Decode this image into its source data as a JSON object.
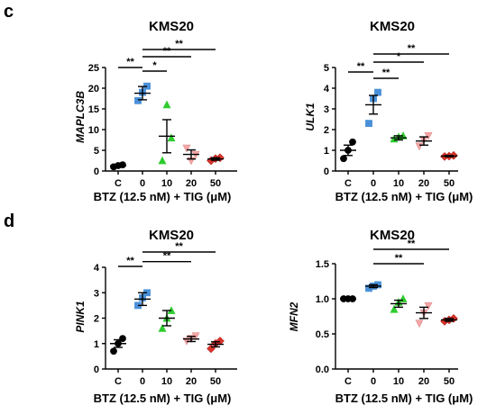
{
  "panel_letters": [
    "c",
    "d"
  ],
  "chart_data": [
    {
      "type": "scatter",
      "panel": "c",
      "title": "KMS20",
      "xlabel": "BTZ (12.5 nM) + TIG (μM)",
      "ylabel": "MAPLC3B",
      "categories": [
        "C",
        "0",
        "10",
        "20",
        "50"
      ],
      "ylim": [
        0,
        25
      ],
      "yticks": [
        "0",
        "5",
        "10",
        "15",
        "20",
        "25"
      ],
      "colors": [
        "#000000",
        "#4a90d9",
        "#2ecc2e",
        "#f4a6a6",
        "#d9342b"
      ],
      "shapes": [
        "circle",
        "square",
        "triangle",
        "triangle-down",
        "diamond"
      ],
      "points": [
        [
          1.0,
          1.3,
          1.5
        ],
        [
          17.0,
          19.0,
          20.5
        ],
        [
          2.5,
          16.0,
          8.0
        ],
        [
          5.5,
          2.5,
          4.0
        ],
        [
          2.5,
          3.0,
          3.2
        ]
      ],
      "mean": [
        1.3,
        18.8,
        8.4,
        4.0,
        2.9
      ],
      "sem": [
        0.2,
        1.6,
        4.0,
        1.1,
        0.3
      ],
      "significance": [
        {
          "from": "C",
          "to": "0",
          "label": "**"
        },
        {
          "from": "0",
          "to": "10",
          "label": "*"
        },
        {
          "from": "0",
          "to": "20",
          "label": "**"
        },
        {
          "from": "0",
          "to": "50",
          "label": "**"
        }
      ]
    },
    {
      "type": "scatter",
      "panel": "c",
      "title": "KMS20",
      "xlabel": "BTZ (12.5 nM) + TIG (μM)",
      "ylabel": "ULK1",
      "categories": [
        "C",
        "0",
        "10",
        "20",
        "50"
      ],
      "ylim": [
        0,
        5
      ],
      "yticks": [
        "0",
        "1",
        "2",
        "3",
        "4",
        "5"
      ],
      "colors": [
        "#000000",
        "#4a90d9",
        "#2ecc2e",
        "#f4a6a6",
        "#d9342b"
      ],
      "shapes": [
        "circle",
        "square",
        "triangle",
        "triangle-down",
        "diamond"
      ],
      "points": [
        [
          0.6,
          1.0,
          1.4
        ],
        [
          2.3,
          3.5,
          3.8
        ],
        [
          1.55,
          1.65,
          1.7
        ],
        [
          1.2,
          1.5,
          1.7
        ],
        [
          0.7,
          0.72,
          0.75
        ]
      ],
      "mean": [
        1.0,
        3.2,
        1.6,
        1.45,
        0.72
      ],
      "sem": [
        0.25,
        0.45,
        0.1,
        0.2,
        0.03
      ],
      "significance": [
        {
          "from": "C",
          "to": "0",
          "label": "**"
        },
        {
          "from": "0",
          "to": "10",
          "label": "**"
        },
        {
          "from": "0",
          "to": "20",
          "label": "*"
        },
        {
          "from": "0",
          "to": "50",
          "label": "**"
        }
      ]
    },
    {
      "type": "scatter",
      "panel": "d",
      "title": "KMS20",
      "xlabel": "BTZ (12.5 nM) + TIG (μM)",
      "ylabel": "PINK1",
      "categories": [
        "C",
        "0",
        "10",
        "20",
        "50"
      ],
      "ylim": [
        0,
        4
      ],
      "yticks": [
        "0",
        "1",
        "2",
        "3",
        "4"
      ],
      "colors": [
        "#000000",
        "#4a90d9",
        "#2ecc2e",
        "#f4a6a6",
        "#d9342b"
      ],
      "shapes": [
        "circle",
        "square",
        "triangle",
        "triangle-down",
        "diamond"
      ],
      "points": [
        [
          0.7,
          1.0,
          1.2
        ],
        [
          2.5,
          2.8,
          3.0
        ],
        [
          1.6,
          2.0,
          2.3
        ],
        [
          1.1,
          1.2,
          1.3
        ],
        [
          0.8,
          1.0,
          1.1
        ]
      ],
      "mean": [
        1.0,
        2.75,
        2.0,
        1.18,
        0.97
      ],
      "sem": [
        0.15,
        0.25,
        0.3,
        0.1,
        0.1
      ],
      "significance": [
        {
          "from": "C",
          "to": "0",
          "label": "**"
        },
        {
          "from": "0",
          "to": "20",
          "label": "**"
        },
        {
          "from": "0",
          "to": "50",
          "label": "**"
        }
      ]
    },
    {
      "type": "scatter",
      "panel": "d",
      "title": "KMS20",
      "xlabel": "BTZ (12.5 nM) + TIG (μM)",
      "ylabel": "MFN2",
      "categories": [
        "C",
        "0",
        "10",
        "20",
        "50"
      ],
      "ylim": [
        0,
        1.5
      ],
      "yticks": [
        "0.0",
        "0.5",
        "1.0",
        "1.5"
      ],
      "colors": [
        "#000000",
        "#4a90d9",
        "#2ecc2e",
        "#f4a6a6",
        "#d9342b"
      ],
      "shapes": [
        "circle",
        "square",
        "triangle",
        "triangle-down",
        "diamond"
      ],
      "points": [
        [
          1.0,
          1.0,
          1.0
        ],
        [
          1.15,
          1.18,
          1.2
        ],
        [
          0.85,
          0.95,
          1.0
        ],
        [
          0.65,
          0.8,
          0.9
        ],
        [
          0.68,
          0.7,
          0.72
        ]
      ],
      "mean": [
        1.0,
        1.18,
        0.93,
        0.8,
        0.7
      ],
      "sem": [
        0.01,
        0.02,
        0.05,
        0.08,
        0.02
      ],
      "significance": [
        {
          "from": "0",
          "to": "20",
          "label": "**"
        },
        {
          "from": "0",
          "to": "50",
          "label": "**"
        }
      ]
    }
  ]
}
